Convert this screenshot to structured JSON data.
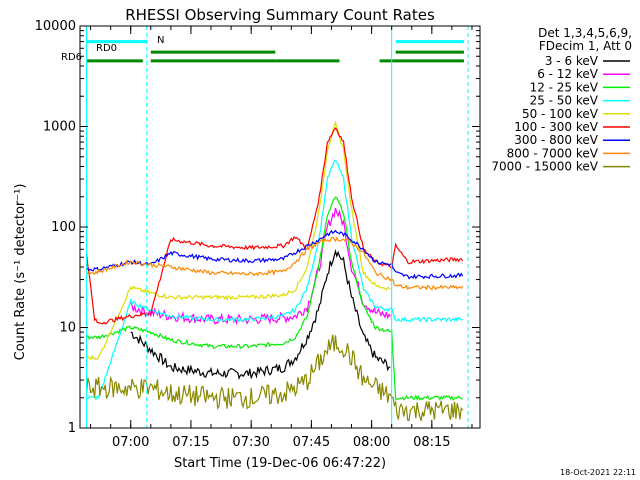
{
  "chart_data": {
    "type": "line",
    "title": "RHESSI Observing Summary Count Rates",
    "xlabel": "Start Time (19-Dec-06 06:47:22)",
    "ylabel": "Count Rate (s⁻¹ detector⁻¹)",
    "y_scale": "log",
    "ylim": [
      1,
      10000
    ],
    "xlim": [
      "06:47:22",
      "08:27:00"
    ],
    "x_ticks": [
      "07:00",
      "07:15",
      "07:30",
      "07:45",
      "08:00",
      "08:15"
    ],
    "y_ticks": [
      "1",
      "10",
      "100",
      "1000",
      "10000"
    ],
    "legend_header": [
      "Det 1,3,4,5,6,9,",
      "FDecim 1, Att 0"
    ],
    "legend_position": "top-right",
    "footer": "18-Oct-2021 22:11",
    "series": [
      {
        "name": "3 - 6 keV",
        "color": "#000000",
        "x": [
          "06:49",
          "06:51",
          "06:52",
          "07:00",
          "07:05",
          "07:10",
          "07:20",
          "07:30",
          "07:38",
          "07:41",
          "07:44",
          "07:47",
          "07:49",
          "07:51",
          "07:53",
          "07:55",
          "07:58",
          "08:01",
          "08:05",
          "08:06",
          "08:09",
          "08:23"
        ],
        "y": [
          null,
          null,
          null,
          9,
          6,
          4,
          3.5,
          3.5,
          4,
          5,
          8,
          16,
          35,
          60,
          45,
          20,
          8,
          5,
          4,
          null,
          null,
          null
        ]
      },
      {
        "name": "6 - 12 keV",
        "color": "#ff00ff",
        "x": [
          "06:49",
          "06:51",
          "06:52",
          "07:00",
          "07:05",
          "07:10",
          "07:20",
          "07:30",
          "07:38",
          "07:41",
          "07:44",
          "07:47",
          "07:49",
          "07:51",
          "07:53",
          "07:55",
          "07:58",
          "08:01",
          "08:05",
          "08:06",
          "08:09",
          "08:23"
        ],
        "y": [
          null,
          null,
          null,
          16,
          14,
          13,
          12,
          12,
          12.5,
          13,
          16,
          40,
          100,
          150,
          110,
          40,
          18,
          14,
          13,
          null,
          null,
          null
        ]
      },
      {
        "name": "12 - 25 keV",
        "color": "#00ee00",
        "x": [
          "06:49",
          "06:51",
          "06:52",
          "07:00",
          "07:05",
          "07:10",
          "07:20",
          "07:30",
          "07:38",
          "07:41",
          "07:44",
          "07:47",
          "07:49",
          "07:51",
          "07:53",
          "07:55",
          "07:58",
          "08:01",
          "08:05",
          "08:06",
          "08:09",
          "08:23"
        ],
        "y": [
          8,
          8,
          8,
          10,
          9,
          7.5,
          6.5,
          6.5,
          7,
          8,
          13,
          45,
          130,
          200,
          140,
          45,
          16,
          10,
          9,
          2,
          2,
          2
        ]
      },
      {
        "name": "25 - 50 keV",
        "color": "#00ffff",
        "x": [
          "06:49",
          "06:51",
          "06:52",
          "07:00",
          "07:05",
          "07:10",
          "07:20",
          "07:30",
          "07:38",
          "07:41",
          "07:44",
          "07:47",
          "07:49",
          "07:51",
          "07:53",
          "07:55",
          "07:58",
          "08:01",
          "08:05",
          "08:06",
          "08:09",
          "08:23"
        ],
        "y": [
          2,
          2,
          2,
          18,
          15,
          13,
          12,
          12,
          13,
          15,
          25,
          80,
          300,
          470,
          300,
          80,
          24,
          16,
          15,
          12,
          12,
          12
        ]
      },
      {
        "name": "50 - 100 keV",
        "color": "#dddd00",
        "x": [
          "06:49",
          "06:51",
          "06:52",
          "07:00",
          "07:05",
          "07:10",
          "07:20",
          "07:30",
          "07:38",
          "07:41",
          "07:44",
          "07:47",
          "07:49",
          "07:51",
          "07:53",
          "07:55",
          "07:58",
          "08:01",
          "08:05",
          "08:06",
          "08:09",
          "08:23"
        ],
        "y": [
          5,
          5,
          5,
          25,
          22,
          20,
          20,
          20,
          21,
          24,
          40,
          150,
          600,
          1050,
          600,
          150,
          35,
          26,
          24,
          null,
          null,
          null
        ]
      },
      {
        "name": "100 - 300 keV",
        "color": "#ff0000",
        "x": [
          "06:49",
          "06:51",
          "06:52",
          "07:00",
          "07:05",
          "07:10",
          "07:20",
          "07:30",
          "07:38",
          "07:41",
          "07:44",
          "07:47",
          "07:49",
          "07:51",
          "07:53",
          "07:55",
          "07:58",
          "08:01",
          "08:05",
          "08:06",
          "08:09",
          "08:23"
        ],
        "y": [
          55,
          12,
          11,
          13,
          14,
          75,
          65,
          62,
          65,
          80,
          60,
          200,
          700,
          980,
          700,
          200,
          60,
          45,
          40,
          65,
          45,
          48
        ]
      },
      {
        "name": "300 - 800 keV",
        "color": "#0000ff",
        "x": [
          "06:49",
          "06:51",
          "06:52",
          "07:00",
          "07:05",
          "07:10",
          "07:20",
          "07:30",
          "07:38",
          "07:41",
          "07:44",
          "07:47",
          "07:49",
          "07:51",
          "07:53",
          "07:55",
          "07:58",
          "08:01",
          "08:05",
          "08:06",
          "08:09",
          "08:23"
        ],
        "y": [
          38,
          38,
          38,
          45,
          42,
          55,
          48,
          46,
          48,
          56,
          65,
          75,
          85,
          90,
          85,
          75,
          60,
          45,
          42,
          35,
          32,
          33
        ]
      },
      {
        "name": "800 - 7000 keV",
        "color": "#ff8800",
        "x": [
          "06:49",
          "06:51",
          "06:52",
          "07:00",
          "07:05",
          "07:10",
          "07:20",
          "07:30",
          "07:38",
          "07:41",
          "07:44",
          "07:47",
          "07:49",
          "07:51",
          "07:53",
          "07:55",
          "07:58",
          "08:01",
          "08:05",
          "08:06",
          "08:09",
          "08:23"
        ],
        "y": [
          35,
          35,
          36,
          45,
          42,
          40,
          35,
          34,
          36,
          45,
          60,
          70,
          75,
          76,
          75,
          70,
          55,
          35,
          30,
          26,
          25,
          25
        ]
      },
      {
        "name": "7000 - 15000 keV",
        "color": "#888800",
        "x": [
          "06:49",
          "06:51",
          "06:52",
          "07:00",
          "07:05",
          "07:10",
          "07:20",
          "07:30",
          "07:38",
          "07:41",
          "07:44",
          "07:47",
          "07:49",
          "07:51",
          "07:53",
          "07:55",
          "07:58",
          "08:01",
          "08:05",
          "08:06",
          "08:09",
          "08:23"
        ],
        "y": [
          2.5,
          2.5,
          2.5,
          2.5,
          2.5,
          2.2,
          2,
          2,
          2.2,
          2.5,
          3,
          4.5,
          6,
          7,
          6.5,
          5,
          3,
          2.5,
          2,
          1.5,
          1.5,
          1.5
        ]
      }
    ],
    "attenuator_bars": [
      {
        "label": "RD0",
        "color": "#00ffff",
        "y": 7000,
        "segments": [
          [
            "06:49",
            "07:04"
          ],
          [
            "08:06",
            "08:23"
          ]
        ]
      },
      {
        "label": "RD6",
        "color": "#008800",
        "y": 4500,
        "segments": [
          [
            "06:49",
            "07:03"
          ],
          [
            "07:05",
            "07:36"
          ],
          [
            "07:36",
            "07:52"
          ],
          [
            "08:02",
            "08:23"
          ]
        ]
      },
      {
        "label": "",
        "color": "#008800",
        "y": 5500,
        "segments": [
          [
            "07:05",
            "07:36"
          ],
          [
            "08:06",
            "08:23"
          ]
        ]
      }
    ],
    "labels": {
      "rd0": "RD0",
      "rd6": "RD6",
      "n": "N"
    },
    "vertical_lines": {
      "solid": [
        "06:49",
        "08:05"
      ],
      "dashed": [
        "07:04",
        "08:24"
      ],
      "color": "#00ffff"
    }
  }
}
